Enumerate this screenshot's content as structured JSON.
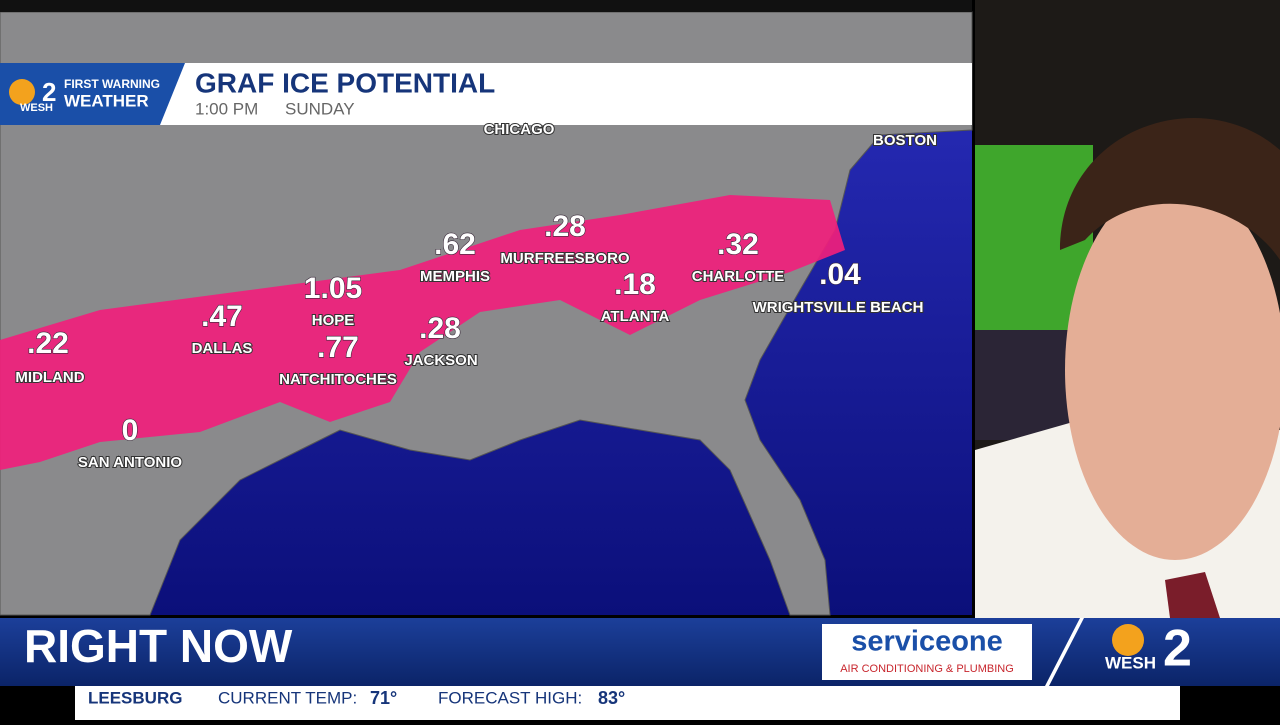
{
  "header": {
    "brand_top": "FIRST WARNING",
    "brand_bottom": "WEATHER",
    "logo_station": "WESH",
    "logo_number": "2",
    "title": "GRAF ICE POTENTIAL",
    "time": "1:00 PM",
    "day": "SUNDAY"
  },
  "map": {
    "reference_cities": [
      "CHICAGO",
      "BOSTON"
    ],
    "cities": [
      {
        "name": "MIDLAND",
        "value": ".22"
      },
      {
        "name": "DALLAS",
        "value": ".47"
      },
      {
        "name": "HOPE",
        "value": "1.05"
      },
      {
        "name": "NATCHITOCHES",
        "value": ".77"
      },
      {
        "name": "JACKSON",
        "value": ".28"
      },
      {
        "name": "MEMPHIS",
        "value": ".62"
      },
      {
        "name": "MURFREESBORO",
        "value": ".28"
      },
      {
        "name": "ATLANTA",
        "value": ".18"
      },
      {
        "name": "CHARLOTTE",
        "value": ".32"
      },
      {
        "name": "WRIGHTSVILLE BEACH",
        "value": ".04"
      },
      {
        "name": "SAN ANTONIO",
        "value": "0"
      }
    ]
  },
  "lower_third": {
    "headline": "RIGHT NOW",
    "sponsor_name": "serviceone",
    "sponsor_tagline": "AIR CONDITIONING & PLUMBING",
    "logo_station": "WESH",
    "logo_number": "2"
  },
  "ticker": {
    "location": "LEESBURG",
    "current_label": "CURRENT TEMP:",
    "current_value": "71°",
    "forecast_label": "FORECAST HIGH:",
    "forecast_value": "83°"
  }
}
